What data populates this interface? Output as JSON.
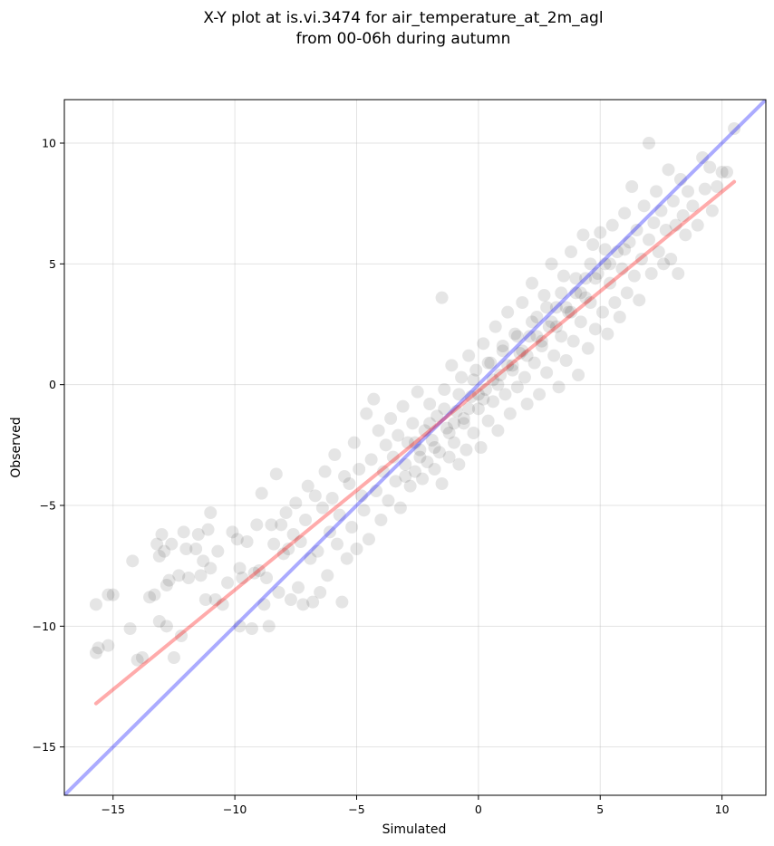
{
  "chart_data": {
    "type": "scatter",
    "title": [
      "X-Y plot at is.vi.3474 for air_temperature_at_2m_agl",
      "from 00-06h during autumn"
    ],
    "xlabel": "Simulated",
    "ylabel": "Observed",
    "xlim": [
      -17,
      11.8
    ],
    "ylim": [
      -17,
      11.8
    ],
    "xticks": [
      -15,
      -10,
      -5,
      0,
      5,
      10
    ],
    "yticks": [
      -15,
      -10,
      -5,
      0,
      5,
      10
    ],
    "xtick_labels": [
      "−15",
      "−10",
      "−5",
      "0",
      "5",
      "10"
    ],
    "ytick_labels": [
      "−15",
      "−10",
      "−5",
      "0",
      "5",
      "10"
    ],
    "grid": true,
    "point_color": "#000000",
    "point_opacity": 0.1,
    "lines": [
      {
        "kind": "one-to-one",
        "color": "#0000ff",
        "opacity": 0.33,
        "x": [
          -17,
          11.8
        ],
        "y": [
          -17,
          11.8
        ]
      },
      {
        "kind": "regression",
        "color": "#ff0000",
        "opacity": 0.33,
        "x": [
          -15.7,
          10.5
        ],
        "y": [
          -13.2,
          8.4
        ]
      }
    ],
    "points": [
      [
        -15.7,
        -9.1
      ],
      [
        -15.7,
        -11.1
      ],
      [
        -15.6,
        -10.9
      ],
      [
        -15.2,
        -8.7
      ],
      [
        -15.0,
        -8.7
      ],
      [
        -15.2,
        -10.8
      ],
      [
        -14.3,
        -10.1
      ],
      [
        -14.2,
        -7.3
      ],
      [
        -14.0,
        -11.4
      ],
      [
        -13.8,
        -11.3
      ],
      [
        -13.5,
        -8.8
      ],
      [
        -13.3,
        -8.7
      ],
      [
        -13.2,
        -6.6
      ],
      [
        -13.1,
        -9.8
      ],
      [
        -13.1,
        -7.1
      ],
      [
        -13.0,
        -6.2
      ],
      [
        -12.9,
        -6.9
      ],
      [
        -12.8,
        -8.3
      ],
      [
        -12.8,
        -10.0
      ],
      [
        -12.7,
        -8.1
      ],
      [
        -12.6,
        -6.6
      ],
      [
        -12.5,
        -11.3
      ],
      [
        -12.3,
        -7.9
      ],
      [
        -12.2,
        -10.4
      ],
      [
        -12.1,
        -6.1
      ],
      [
        -12.0,
        -6.8
      ],
      [
        -11.9,
        -8.0
      ],
      [
        -11.6,
        -6.8
      ],
      [
        -11.5,
        -6.2
      ],
      [
        -11.4,
        -7.9
      ],
      [
        -11.3,
        -7.3
      ],
      [
        -11.2,
        -8.9
      ],
      [
        -11.1,
        -6.0
      ],
      [
        -11.0,
        -5.3
      ],
      [
        -11.0,
        -7.6
      ],
      [
        -10.8,
        -8.9
      ],
      [
        -10.7,
        -6.9
      ],
      [
        -10.5,
        -9.1
      ],
      [
        -10.3,
        -8.2
      ],
      [
        -10.1,
        -6.1
      ],
      [
        -9.9,
        -6.4
      ],
      [
        -9.8,
        -7.6
      ],
      [
        -9.8,
        -10.0
      ],
      [
        -9.7,
        -8.0
      ],
      [
        -9.5,
        -6.5
      ],
      [
        -9.3,
        -10.1
      ],
      [
        -9.2,
        -7.8
      ],
      [
        -9.1,
        -5.8
      ],
      [
        -9.0,
        -7.7
      ],
      [
        -8.9,
        -4.5
      ],
      [
        -8.8,
        -9.1
      ],
      [
        -8.7,
        -8.0
      ],
      [
        -8.6,
        -10.0
      ],
      [
        -8.5,
        -5.8
      ],
      [
        -8.4,
        -6.6
      ],
      [
        -8.3,
        -3.7
      ],
      [
        -8.2,
        -8.6
      ],
      [
        -8.1,
        -5.8
      ],
      [
        -8.0,
        -7.0
      ],
      [
        -7.9,
        -5.3
      ],
      [
        -7.8,
        -6.8
      ],
      [
        -7.7,
        -8.9
      ],
      [
        -7.6,
        -6.2
      ],
      [
        -7.5,
        -4.9
      ],
      [
        -7.4,
        -8.4
      ],
      [
        -7.3,
        -6.5
      ],
      [
        -7.2,
        -9.1
      ],
      [
        -7.1,
        -5.6
      ],
      [
        -7.0,
        -4.2
      ],
      [
        -6.9,
        -7.2
      ],
      [
        -6.8,
        -9.0
      ],
      [
        -6.7,
        -4.6
      ],
      [
        -6.6,
        -6.9
      ],
      [
        -6.5,
        -8.6
      ],
      [
        -6.4,
        -5.1
      ],
      [
        -6.3,
        -3.6
      ],
      [
        -6.2,
        -7.9
      ],
      [
        -6.1,
        -6.1
      ],
      [
        -6.0,
        -4.7
      ],
      [
        -5.9,
        -2.9
      ],
      [
        -5.8,
        -6.6
      ],
      [
        -5.7,
        -5.4
      ],
      [
        -5.6,
        -9.0
      ],
      [
        -5.5,
        -3.8
      ],
      [
        -5.4,
        -7.2
      ],
      [
        -5.3,
        -4.1
      ],
      [
        -5.2,
        -5.9
      ],
      [
        -5.1,
        -2.4
      ],
      [
        -5.0,
        -6.8
      ],
      [
        -4.9,
        -3.5
      ],
      [
        -4.8,
        -4.6
      ],
      [
        -4.7,
        -5.2
      ],
      [
        -4.6,
        -1.2
      ],
      [
        -4.5,
        -6.4
      ],
      [
        -4.4,
        -3.1
      ],
      [
        -4.3,
        -0.6
      ],
      [
        -4.2,
        -4.4
      ],
      [
        -4.1,
        -1.9
      ],
      [
        -4.0,
        -5.6
      ],
      [
        -3.9,
        -3.6
      ],
      [
        -3.8,
        -2.5
      ],
      [
        -3.7,
        -4.8
      ],
      [
        -3.6,
        -1.4
      ],
      [
        -3.5,
        -3.0
      ],
      [
        -3.4,
        -4.0
      ],
      [
        -3.3,
        -2.1
      ],
      [
        -3.2,
        -5.1
      ],
      [
        -3.1,
        -0.9
      ],
      [
        -3.0,
        -3.3
      ],
      [
        -2.9,
        -2.4
      ],
      [
        -2.8,
        -4.2
      ],
      [
        -2.7,
        -1.6
      ],
      [
        -2.6,
        -3.6
      ],
      [
        -2.5,
        -0.3
      ],
      [
        -2.4,
        -2.7
      ],
      [
        -2.3,
        -3.9
      ],
      [
        -2.2,
        -1.9
      ],
      [
        -2.1,
        -3.2
      ],
      [
        -2.0,
        -0.8
      ],
      [
        -1.9,
        -2.3
      ],
      [
        -1.8,
        -3.5
      ],
      [
        -1.7,
        -1.3
      ],
      [
        -1.6,
        -2.8
      ],
      [
        -1.5,
        3.6
      ],
      [
        -1.5,
        -4.1
      ],
      [
        -1.4,
        -0.2
      ],
      [
        -1.3,
        -1.8
      ],
      [
        -1.2,
        -3.0
      ],
      [
        -1.1,
        0.8
      ],
      [
        -1.0,
        -2.4
      ],
      [
        -0.9,
        -1.1
      ],
      [
        -0.8,
        -3.3
      ],
      [
        -0.7,
        0.3
      ],
      [
        -0.6,
        -1.6
      ],
      [
        -0.5,
        -2.7
      ],
      [
        -0.4,
        1.2
      ],
      [
        -0.3,
        -0.5
      ],
      [
        -0.2,
        -2.0
      ],
      [
        -0.1,
        0.6
      ],
      [
        0.0,
        -1.0
      ],
      [
        0.1,
        -2.6
      ],
      [
        0.2,
        1.7
      ],
      [
        0.3,
        -0.2
      ],
      [
        0.4,
        -1.5
      ],
      [
        0.5,
        0.9
      ],
      [
        0.6,
        -0.7
      ],
      [
        0.7,
        2.4
      ],
      [
        0.8,
        -1.9
      ],
      [
        0.9,
        0.4
      ],
      [
        1.0,
        1.6
      ],
      [
        1.1,
        -0.4
      ],
      [
        1.2,
        3.0
      ],
      [
        1.3,
        -1.2
      ],
      [
        1.4,
        0.8
      ],
      [
        1.5,
        2.1
      ],
      [
        1.6,
        -0.1
      ],
      [
        1.7,
        1.3
      ],
      [
        1.8,
        3.4
      ],
      [
        1.9,
        0.3
      ],
      [
        2.0,
        -0.8
      ],
      [
        2.1,
        2.0
      ],
      [
        2.2,
        4.2
      ],
      [
        2.3,
        0.9
      ],
      [
        2.4,
        2.8
      ],
      [
        2.5,
        -0.4
      ],
      [
        2.6,
        1.6
      ],
      [
        2.7,
        3.7
      ],
      [
        2.8,
        0.5
      ],
      [
        2.9,
        2.4
      ],
      [
        3.0,
        5.0
      ],
      [
        3.1,
        1.2
      ],
      [
        3.2,
        3.2
      ],
      [
        3.3,
        -0.1
      ],
      [
        3.4,
        2.0
      ],
      [
        3.5,
        4.5
      ],
      [
        3.6,
        1.0
      ],
      [
        3.7,
        3.0
      ],
      [
        3.8,
        5.5
      ],
      [
        3.9,
        1.8
      ],
      [
        4.0,
        3.8
      ],
      [
        4.1,
        0.4
      ],
      [
        4.2,
        2.6
      ],
      [
        4.3,
        6.2
      ],
      [
        4.4,
        4.4
      ],
      [
        4.5,
        1.5
      ],
      [
        4.6,
        3.4
      ],
      [
        4.7,
        5.8
      ],
      [
        4.8,
        2.3
      ],
      [
        4.9,
        4.6
      ],
      [
        5.0,
        6.3
      ],
      [
        5.1,
        3.0
      ],
      [
        5.2,
        5.0
      ],
      [
        5.3,
        2.1
      ],
      [
        5.4,
        4.2
      ],
      [
        5.5,
        6.6
      ],
      [
        5.6,
        3.4
      ],
      [
        5.7,
        5.5
      ],
      [
        5.8,
        2.8
      ],
      [
        5.9,
        4.8
      ],
      [
        6.0,
        7.1
      ],
      [
        6.1,
        3.8
      ],
      [
        6.2,
        5.9
      ],
      [
        6.3,
        8.2
      ],
      [
        6.4,
        4.5
      ],
      [
        6.5,
        6.4
      ],
      [
        6.6,
        3.5
      ],
      [
        6.7,
        5.2
      ],
      [
        6.8,
        7.4
      ],
      [
        7.0,
        10.0
      ],
      [
        7.0,
        6.0
      ],
      [
        7.1,
        4.6
      ],
      [
        7.2,
        6.7
      ],
      [
        7.3,
        8.0
      ],
      [
        7.4,
        5.5
      ],
      [
        7.5,
        7.2
      ],
      [
        7.6,
        5.0
      ],
      [
        7.7,
        6.4
      ],
      [
        7.8,
        8.9
      ],
      [
        7.9,
        5.2
      ],
      [
        8.0,
        7.6
      ],
      [
        8.1,
        6.6
      ],
      [
        8.2,
        4.6
      ],
      [
        8.3,
        8.5
      ],
      [
        8.4,
        7.0
      ],
      [
        8.5,
        6.2
      ],
      [
        8.6,
        8.0
      ],
      [
        8.8,
        7.4
      ],
      [
        9.0,
        6.6
      ],
      [
        9.2,
        9.4
      ],
      [
        9.3,
        8.1
      ],
      [
        9.5,
        9.0
      ],
      [
        9.6,
        7.2
      ],
      [
        9.8,
        8.2
      ],
      [
        10.0,
        8.8
      ],
      [
        10.2,
        8.8
      ],
      [
        10.5,
        10.6
      ],
      [
        -1.0,
        -1.6
      ],
      [
        -0.4,
        -1.0
      ],
      [
        0.2,
        -0.6
      ],
      [
        0.8,
        0.0
      ],
      [
        1.4,
        0.6
      ],
      [
        2.0,
        1.2
      ],
      [
        2.6,
        1.8
      ],
      [
        3.2,
        2.4
      ],
      [
        3.8,
        3.0
      ],
      [
        4.4,
        3.6
      ],
      [
        -2.6,
        -2.4
      ],
      [
        -2.0,
        -1.6
      ],
      [
        -1.4,
        -1.0
      ],
      [
        -0.8,
        -0.4
      ],
      [
        -0.2,
        0.2
      ],
      [
        0.4,
        0.9
      ],
      [
        1.0,
        1.4
      ],
      [
        1.6,
        2.0
      ],
      [
        2.2,
        2.6
      ],
      [
        2.8,
        3.2
      ],
      [
        3.4,
        3.8
      ],
      [
        4.0,
        4.4
      ],
      [
        4.6,
        5.0
      ],
      [
        5.2,
        5.6
      ],
      [
        -3.0,
        -3.8
      ],
      [
        -2.4,
        -3.0
      ],
      [
        -1.8,
        -2.6
      ],
      [
        -1.2,
        -2.0
      ],
      [
        -0.6,
        -1.4
      ],
      [
        0.0,
        -0.4
      ],
      [
        0.6,
        0.2
      ],
      [
        1.2,
        0.8
      ],
      [
        1.8,
        1.4
      ],
      [
        2.4,
        2.0
      ],
      [
        3.0,
        2.6
      ],
      [
        3.6,
        3.2
      ],
      [
        4.2,
        3.8
      ],
      [
        4.8,
        4.4
      ],
      [
        5.4,
        5.0
      ],
      [
        6.0,
        5.6
      ]
    ]
  }
}
